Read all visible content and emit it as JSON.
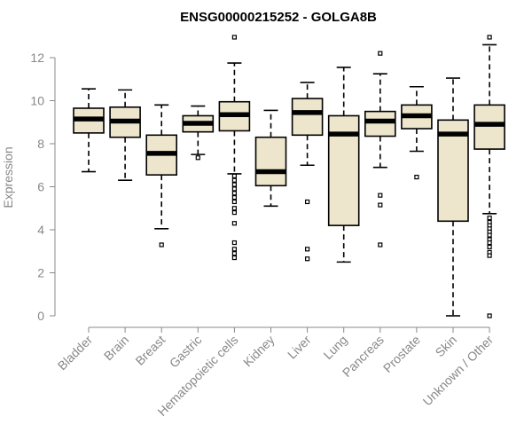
{
  "chart_data": {
    "type": "boxplot",
    "title": "ENSG00000215252 - GOLGA8B",
    "xlabel": "",
    "ylabel": "Expression",
    "ylim": [
      0,
      13
    ],
    "yticks": [
      0,
      2,
      4,
      6,
      8,
      10,
      12
    ],
    "grid": false,
    "colors": {
      "box_fill": "#ede6cc",
      "stroke": "#000000",
      "axis": "#888888"
    },
    "categories": [
      "Bladder",
      "Brain",
      "Breast",
      "Gastric",
      "Hematopoietic cells",
      "Kidney",
      "Liver",
      "Lung",
      "Pancreas",
      "Prostate",
      "Skin",
      "Unknown / Other"
    ],
    "boxes": [
      {
        "name": "Bladder",
        "whisker_low": 6.7,
        "q1": 8.5,
        "median": 9.15,
        "q3": 9.65,
        "whisker_high": 10.55,
        "outliers": []
      },
      {
        "name": "Brain",
        "whisker_low": 6.3,
        "q1": 8.3,
        "median": 9.05,
        "q3": 9.7,
        "whisker_high": 10.5,
        "outliers": []
      },
      {
        "name": "Breast",
        "whisker_low": 4.05,
        "q1": 6.55,
        "median": 7.55,
        "q3": 8.4,
        "whisker_high": 9.8,
        "outliers": [
          3.3
        ]
      },
      {
        "name": "Gastric",
        "whisker_low": 7.5,
        "q1": 8.55,
        "median": 8.95,
        "q3": 9.3,
        "whisker_high": 9.75,
        "outliers": [
          7.35
        ]
      },
      {
        "name": "Hematopoietic cells",
        "whisker_low": 6.6,
        "q1": 8.6,
        "median": 9.35,
        "q3": 9.95,
        "whisker_high": 11.75,
        "outliers": [
          12.95,
          6.5,
          6.3,
          6.1,
          5.9,
          5.7,
          5.5,
          5.3,
          5.0,
          4.8,
          4.3,
          3.4,
          3.1,
          2.9,
          2.7
        ]
      },
      {
        "name": "Kidney",
        "whisker_low": 5.1,
        "q1": 6.05,
        "median": 6.7,
        "q3": 8.3,
        "whisker_high": 9.55,
        "outliers": []
      },
      {
        "name": "Liver",
        "whisker_low": 7.0,
        "q1": 8.4,
        "median": 9.45,
        "q3": 10.1,
        "whisker_high": 10.85,
        "outliers": [
          5.3,
          3.1,
          2.65
        ]
      },
      {
        "name": "Lung",
        "whisker_low": 2.5,
        "q1": 4.2,
        "median": 8.45,
        "q3": 9.3,
        "whisker_high": 11.55,
        "outliers": []
      },
      {
        "name": "Pancreas",
        "whisker_low": 6.9,
        "q1": 8.35,
        "median": 9.05,
        "q3": 9.5,
        "whisker_high": 11.25,
        "outliers": [
          12.2,
          5.6,
          5.15,
          3.3
        ]
      },
      {
        "name": "Prostate",
        "whisker_low": 7.65,
        "q1": 8.7,
        "median": 9.3,
        "q3": 9.8,
        "whisker_high": 10.65,
        "outliers": [
          6.45
        ]
      },
      {
        "name": "Skin",
        "whisker_low": 0.0,
        "q1": 4.4,
        "median": 8.45,
        "q3": 9.1,
        "whisker_high": 11.05,
        "outliers": []
      },
      {
        "name": "Unknown / Other",
        "whisker_low": 4.75,
        "q1": 7.75,
        "median": 8.9,
        "q3": 9.8,
        "whisker_high": 12.6,
        "outliers": [
          12.95,
          4.55,
          4.35,
          4.2,
          4.05,
          3.9,
          3.75,
          3.55,
          3.4,
          3.2,
          2.95,
          2.8,
          0.0
        ]
      }
    ]
  }
}
